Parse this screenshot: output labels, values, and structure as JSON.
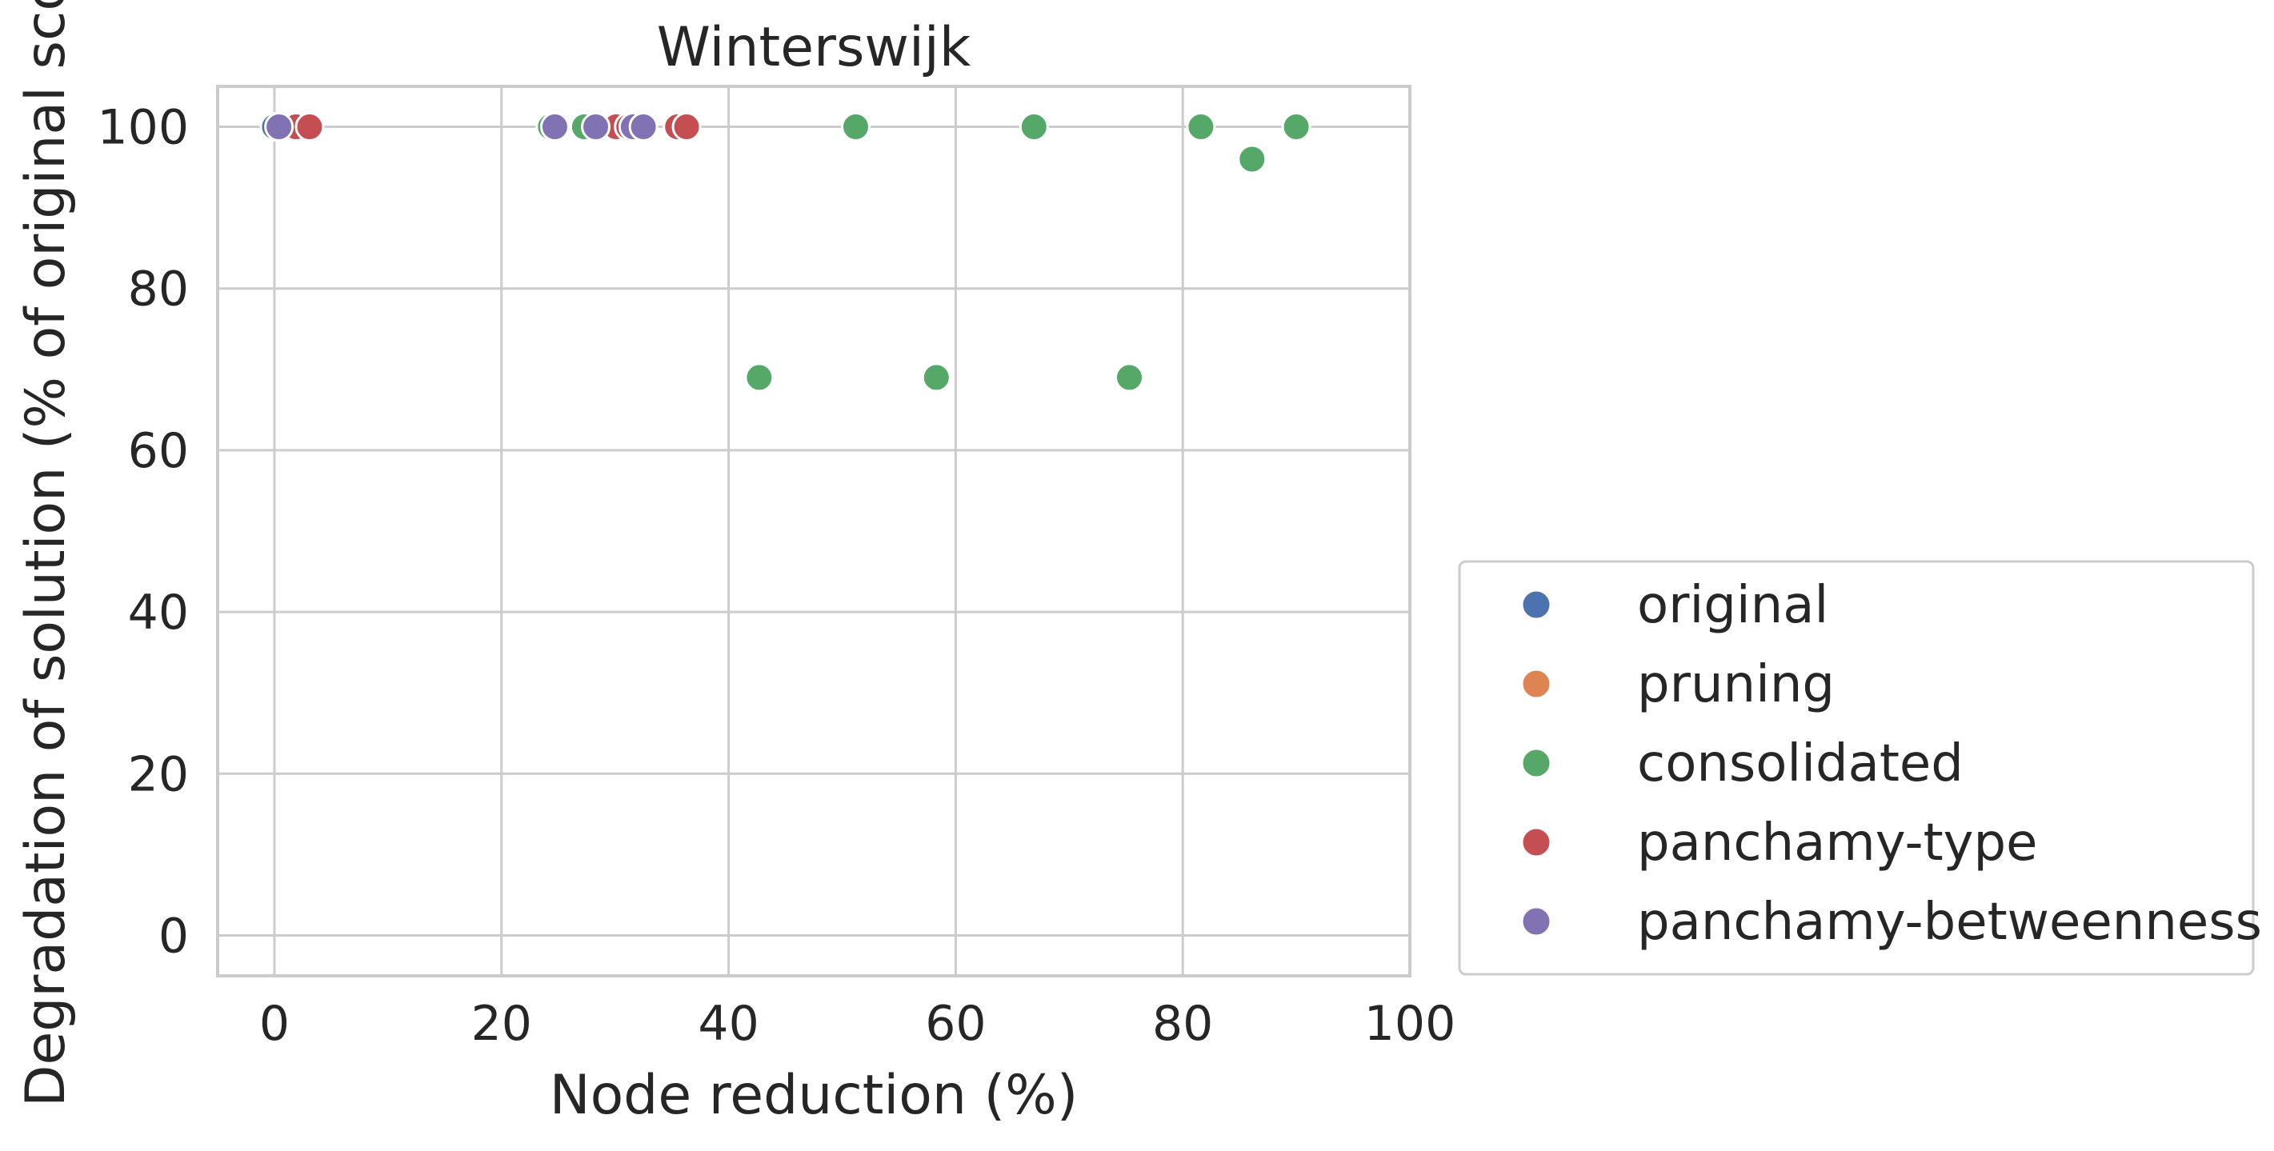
{
  "chart_data": {
    "type": "scatter",
    "title": "Winterswijk",
    "xlabel": "Node reduction (%)",
    "ylabel": "Degradation of solution (% of original scor",
    "xlim": [
      -5,
      100
    ],
    "ylim": [
      -5,
      105
    ],
    "xticks": [
      "0",
      "20",
      "40",
      "60",
      "80",
      "100"
    ],
    "xtick_values": [
      0,
      20,
      40,
      60,
      80,
      100
    ],
    "yticks": [
      "0",
      "20",
      "40",
      "60",
      "80",
      "100"
    ],
    "ytick_values": [
      0,
      20,
      40,
      60,
      80,
      100
    ],
    "grid": true,
    "legend_position": "lower right, outside plot",
    "series": [
      {
        "name": "original",
        "color": "#4c72b0",
        "points": [
          {
            "x": 0.0,
            "y": 100
          }
        ]
      },
      {
        "name": "pruning",
        "color": "#dd8452",
        "points": [
          {
            "x": 0.5,
            "y": 100
          }
        ]
      },
      {
        "name": "consolidated",
        "color": "#55a868",
        "points": [
          {
            "x": 24.3,
            "y": 100
          },
          {
            "x": 27.3,
            "y": 100
          },
          {
            "x": 42.7,
            "y": 69
          },
          {
            "x": 51.2,
            "y": 100
          },
          {
            "x": 58.3,
            "y": 69
          },
          {
            "x": 66.9,
            "y": 100
          },
          {
            "x": 75.3,
            "y": 69
          },
          {
            "x": 81.6,
            "y": 100
          },
          {
            "x": 86.1,
            "y": 96
          },
          {
            "x": 90.0,
            "y": 100
          }
        ]
      },
      {
        "name": "panchamy-type",
        "color": "#c44e52",
        "points": [
          {
            "x": 1.9,
            "y": 100
          },
          {
            "x": 3.1,
            "y": 100
          },
          {
            "x": 30.1,
            "y": 100
          },
          {
            "x": 31.2,
            "y": 100
          },
          {
            "x": 35.5,
            "y": 100
          },
          {
            "x": 36.3,
            "y": 100
          }
        ]
      },
      {
        "name": "panchamy-betweenness",
        "color": "#8172b3",
        "points": [
          {
            "x": 0.4,
            "y": 100
          },
          {
            "x": 24.7,
            "y": 100
          },
          {
            "x": 28.3,
            "y": 100
          },
          {
            "x": 31.6,
            "y": 100
          },
          {
            "x": 32.5,
            "y": 100
          }
        ]
      }
    ]
  }
}
